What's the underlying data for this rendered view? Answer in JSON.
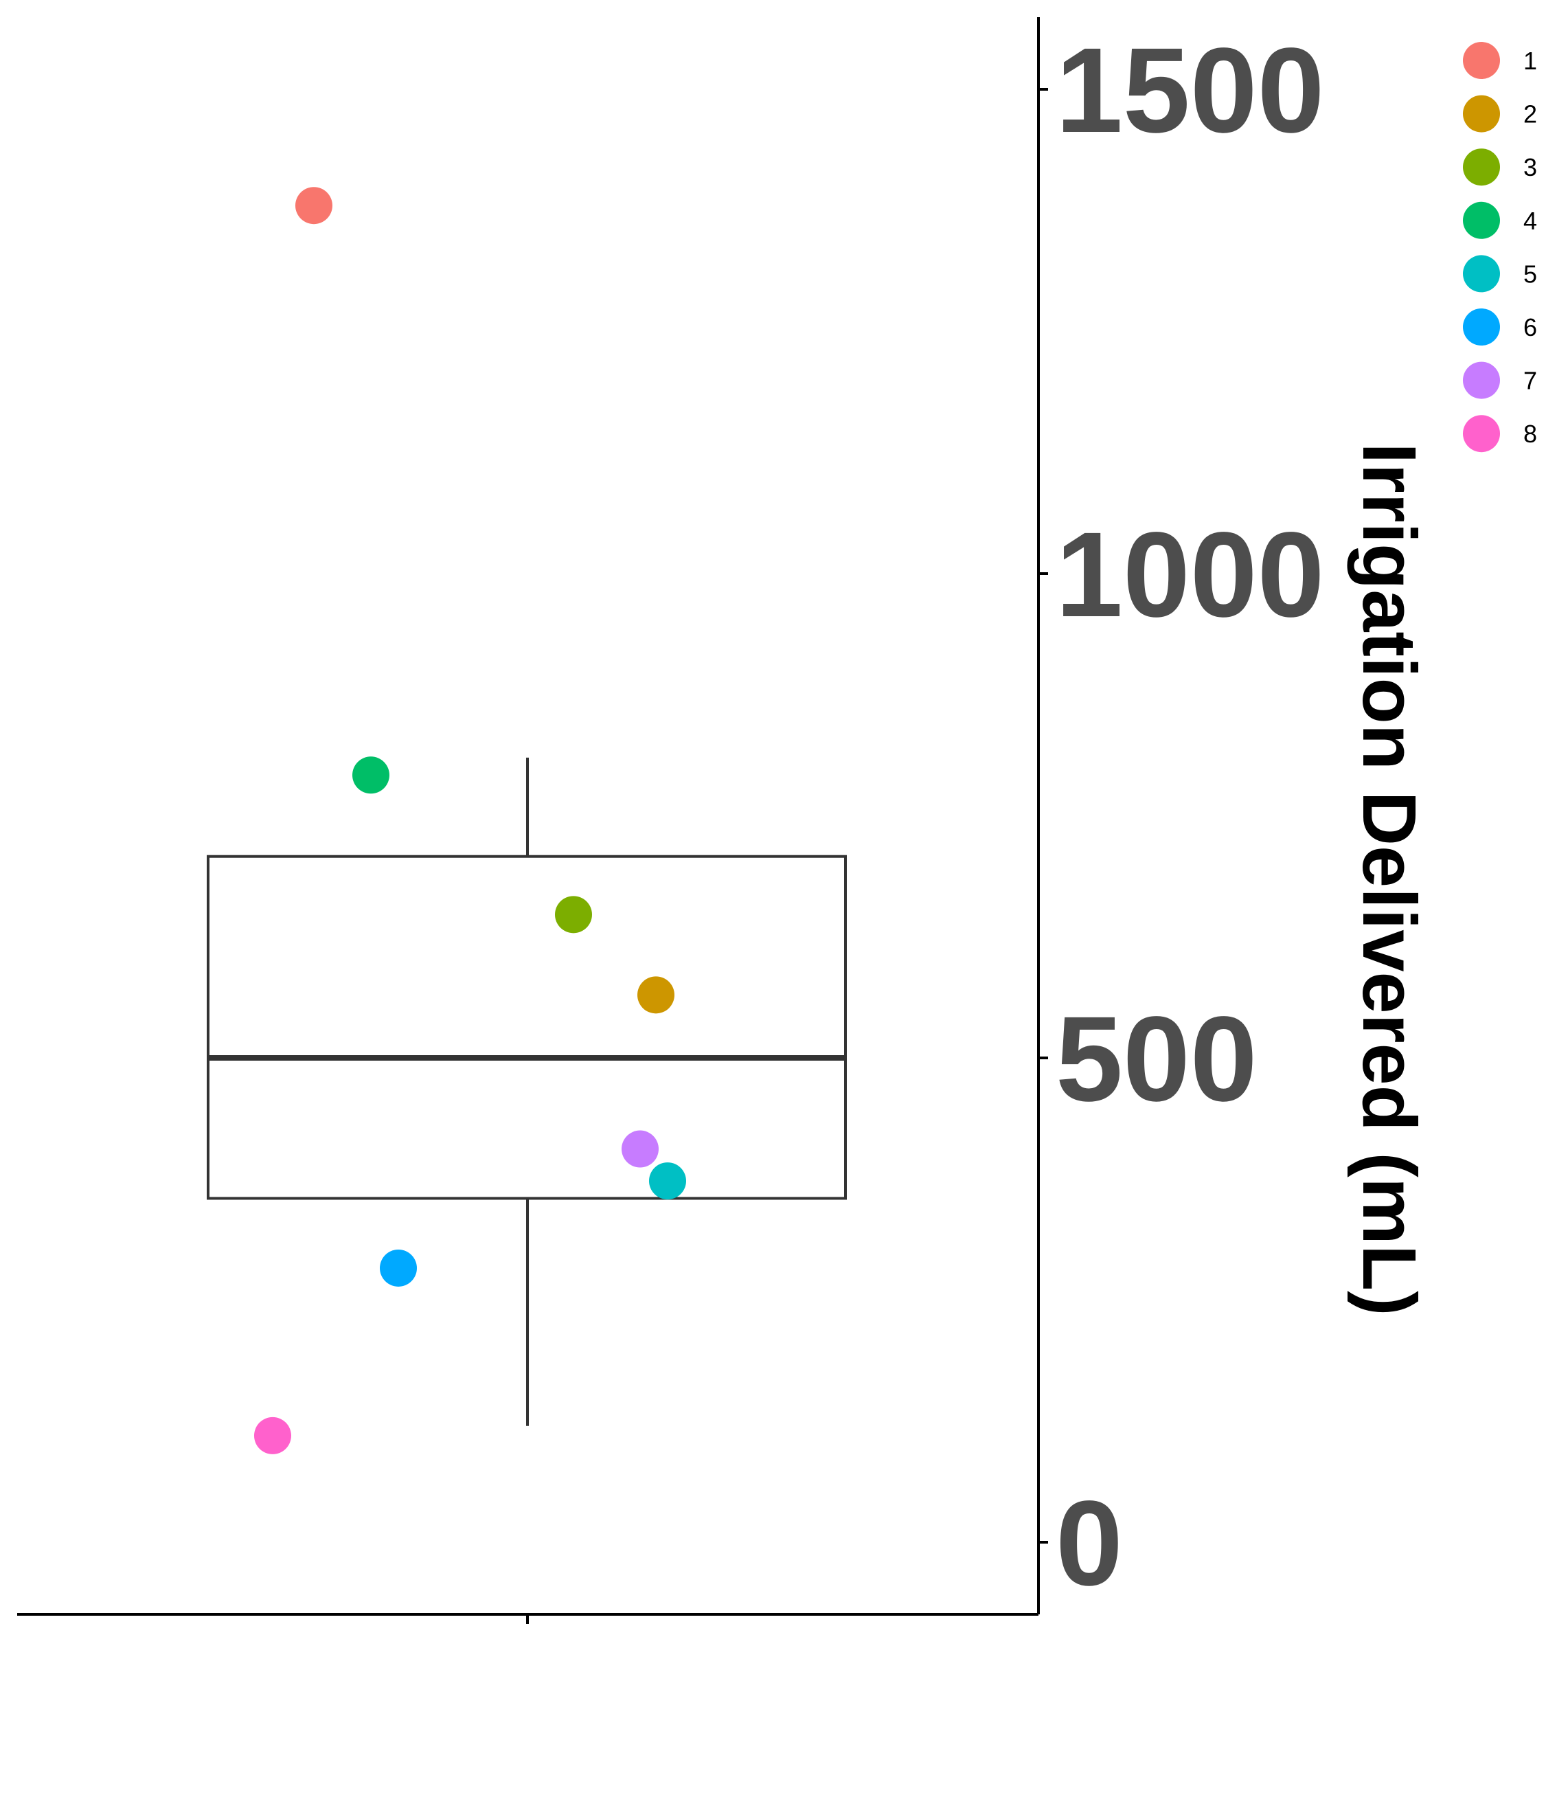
{
  "chart_data": {
    "type": "boxplot",
    "title": "",
    "xlabel": "",
    "ylabel": "Irrigation Delivered (mL)",
    "ylim": [
      -75,
      1570
    ],
    "y_ticks": [
      0,
      500,
      1000,
      1500
    ],
    "y_axis_position": "right",
    "grid": false,
    "legend_position": "right",
    "box": {
      "min": 120,
      "q1": 355,
      "median": 500,
      "q3": 708,
      "max": 810
    },
    "series": [
      {
        "name": "1",
        "value": 1380,
        "color": "#F8766D"
      },
      {
        "name": "2",
        "value": 565,
        "color": "#CD9600"
      },
      {
        "name": "3",
        "value": 648,
        "color": "#7CAE00"
      },
      {
        "name": "4",
        "value": 792,
        "color": "#00BE67"
      },
      {
        "name": "5",
        "value": 373,
        "color": "#00BFC4"
      },
      {
        "name": "6",
        "value": 283,
        "color": "#00A9FF"
      },
      {
        "name": "7",
        "value": 406,
        "color": "#C77CFF"
      },
      {
        "name": "8",
        "value": 110,
        "color": "#FF61CC"
      }
    ]
  }
}
